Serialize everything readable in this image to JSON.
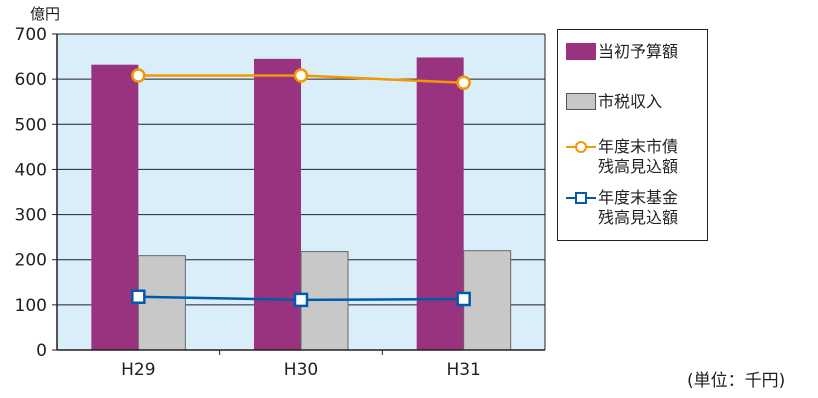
{
  "chart_data": {
    "type": "bar",
    "categories": [
      "H29",
      "H30",
      "H31"
    ],
    "y_unit_label": "億円",
    "ylim": [
      0,
      700
    ],
    "yticks": [
      0,
      100,
      200,
      300,
      400,
      500,
      600,
      700
    ],
    "grid": true,
    "plot_background": "#d9eef8",
    "bar_series": [
      {
        "name": "当初予算額",
        "values": [
          632,
          645,
          648
        ],
        "color": "#993380"
      },
      {
        "name": "市税収入",
        "values": [
          209,
          218,
          220
        ],
        "color": "#c8c8c8"
      }
    ],
    "line_series": [
      {
        "name": "年度末市債\n残高見込額",
        "values": [
          608,
          608,
          592
        ],
        "color": "#f39800",
        "marker": "circle"
      },
      {
        "name": "年度末基金\n残高見込額",
        "values": [
          118,
          111,
          113
        ],
        "color": "#005bac",
        "marker": "square"
      }
    ],
    "legend_position": "right"
  },
  "note": "(単位：千円)"
}
